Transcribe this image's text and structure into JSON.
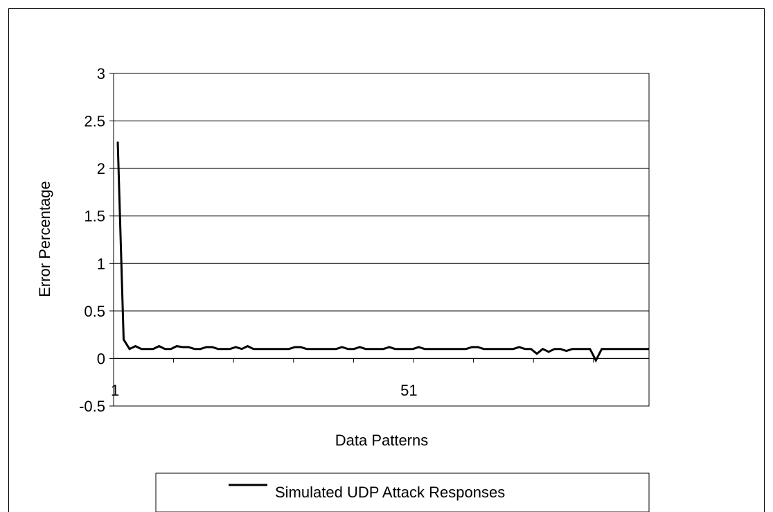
{
  "chart_data": {
    "type": "line",
    "title": "",
    "xlabel": "Data Patterns",
    "ylabel": "Error Percentage",
    "ylim": [
      -0.5,
      3
    ],
    "yticks": [
      "3",
      "2.5",
      "2",
      "1.5",
      "1",
      "0.5",
      "0",
      "-0.5"
    ],
    "ytick_values": [
      3,
      2.5,
      2,
      1.5,
      1,
      0.5,
      0,
      -0.5
    ],
    "xtick_labels": [
      "1",
      "51"
    ],
    "xtick_label_positions": [
      1,
      51
    ],
    "x_start": 1,
    "x_step": 1,
    "grid": true,
    "legend_position": "bottom",
    "series": [
      {
        "name": "Simulated UDP Attack Responses",
        "color": "#000000",
        "values": [
          2.28,
          0.2,
          0.1,
          0.13,
          0.1,
          0.1,
          0.1,
          0.13,
          0.1,
          0.1,
          0.13,
          0.12,
          0.12,
          0.1,
          0.1,
          0.12,
          0.12,
          0.1,
          0.1,
          0.1,
          0.12,
          0.1,
          0.13,
          0.1,
          0.1,
          0.1,
          0.1,
          0.1,
          0.1,
          0.1,
          0.12,
          0.12,
          0.1,
          0.1,
          0.1,
          0.1,
          0.1,
          0.1,
          0.12,
          0.1,
          0.1,
          0.12,
          0.1,
          0.1,
          0.1,
          0.1,
          0.12,
          0.1,
          0.1,
          0.1,
          0.1,
          0.12,
          0.1,
          0.1,
          0.1,
          0.1,
          0.1,
          0.1,
          0.1,
          0.1,
          0.12,
          0.12,
          0.1,
          0.1,
          0.1,
          0.1,
          0.1,
          0.1,
          0.12,
          0.1,
          0.1,
          0.05,
          0.1,
          0.07,
          0.1,
          0.1,
          0.08,
          0.1,
          0.1,
          0.1,
          0.1,
          -0.02,
          0.1,
          0.1,
          0.1,
          0.1,
          0.1,
          0.1,
          0.1,
          0.1,
          0.1
        ]
      }
    ]
  }
}
